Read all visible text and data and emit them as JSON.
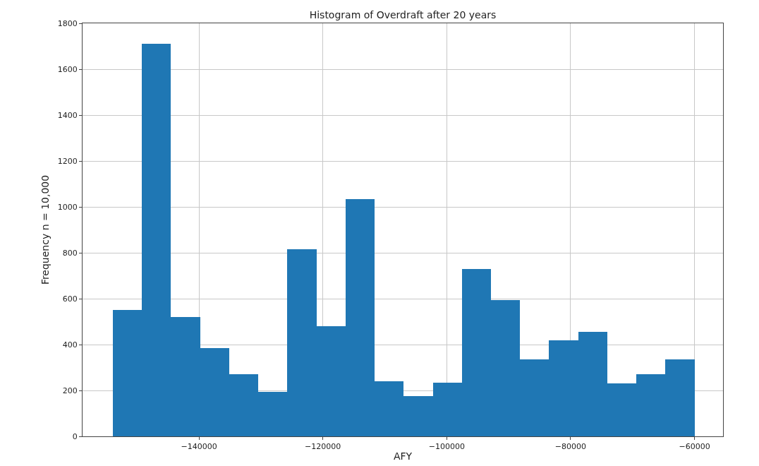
{
  "chart_data": {
    "type": "histogram",
    "title": "Histogram of Overdraft after 20 years",
    "xlabel": "AFY",
    "ylabel": "Frequency n = 10,000",
    "bins": [
      -153900,
      -149205,
      -144510,
      -139815,
      -135120,
      -130425,
      -125730,
      -121035,
      -116340,
      -111645,
      -106950,
      -102255,
      -97560,
      -92865,
      -88170,
      -83475,
      -78780,
      -74085,
      -69390,
      -64695,
      -60000
    ],
    "values": [
      550,
      1710,
      520,
      385,
      270,
      195,
      815,
      480,
      1035,
      240,
      175,
      235,
      730,
      595,
      335,
      420,
      455,
      230,
      270,
      335
    ],
    "color": "#1f77b4",
    "xlim": [
      -158800,
      -55400
    ],
    "xticks": [
      {
        "value": -140000,
        "label": "−140000"
      },
      {
        "value": -120000,
        "label": "−120000"
      },
      {
        "value": -100000,
        "label": "−100000"
      },
      {
        "value": -80000,
        "label": "−80000"
      },
      {
        "value": -60000,
        "label": "−60000"
      }
    ],
    "ylim": [
      0,
      1800
    ],
    "yticks": [
      0,
      200,
      400,
      600,
      800,
      1000,
      1200,
      1400,
      1600,
      1800
    ],
    "grid": true
  }
}
